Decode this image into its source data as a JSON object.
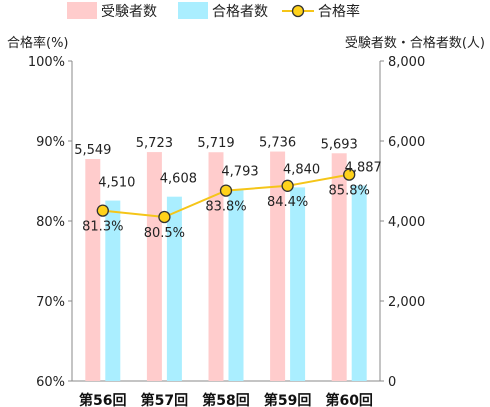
{
  "legend": {
    "applicants": "受験者数",
    "passers": "合格者数",
    "pass_rate": "合格率"
  },
  "axes": {
    "left_title": "合格率(%)",
    "right_title": "受験者数・合格者数(人)"
  },
  "colors": {
    "applicants": "#ffcccc",
    "passers": "#aaeeff",
    "pass_rate_line": "#f5c518",
    "pass_rate_marker": "#ffd21a",
    "marker_stroke": "#333333",
    "axis": "#888888"
  },
  "chart_data": {
    "type": "bar",
    "categories": [
      "第56回",
      "第57回",
      "第58回",
      "第59回",
      "第60回"
    ],
    "series": [
      {
        "name": "受験者数",
        "axis": "right",
        "values": [
          5549,
          5723,
          5719,
          5736,
          5693
        ],
        "labels": [
          "5,549",
          "5,723",
          "5,719",
          "5,736",
          "5,693"
        ]
      },
      {
        "name": "合格者数",
        "axis": "right",
        "values": [
          4510,
          4608,
          4793,
          4840,
          4887
        ],
        "labels": [
          "4,510",
          "4,608",
          "4,793",
          "4,840",
          "4,887"
        ]
      },
      {
        "name": "合格率",
        "type": "line",
        "axis": "left",
        "values": [
          81.3,
          80.5,
          83.8,
          84.4,
          85.8
        ],
        "labels": [
          "81.3%",
          "80.5%",
          "83.8%",
          "84.4%",
          "85.8%"
        ]
      }
    ],
    "y_left": {
      "title": "合格率(%)",
      "range": [
        60,
        100
      ],
      "ticks": [
        60,
        70,
        80,
        90,
        100
      ],
      "tick_labels": [
        "60%",
        "70%",
        "80%",
        "90%",
        "100%"
      ]
    },
    "y_right": {
      "title": "受験者数・合格者数(人)",
      "range": [
        0,
        8000
      ],
      "ticks": [
        0,
        2000,
        4000,
        6000,
        8000
      ],
      "tick_labels": [
        "0",
        "2,000",
        "4,000",
        "6,000",
        "8,000"
      ]
    },
    "grid": false,
    "legend_position": "top"
  }
}
